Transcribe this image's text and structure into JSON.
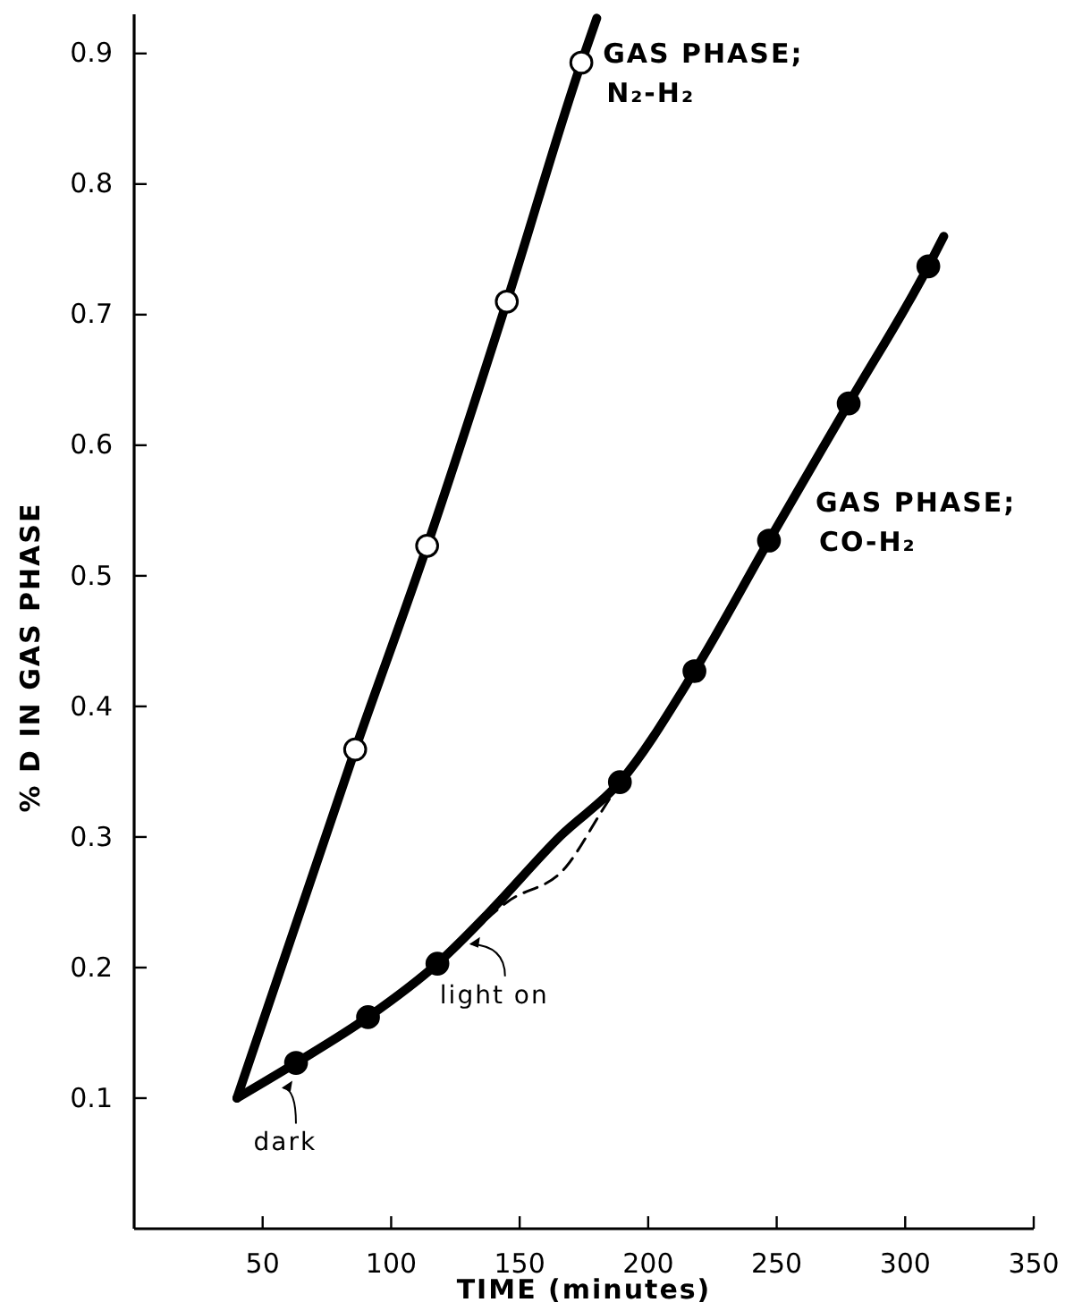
{
  "chart_data": {
    "type": "line",
    "xlabel": "TIME (minutes)",
    "ylabel": "% D IN GAS PHASE",
    "xlim": [
      0,
      350
    ],
    "ylim": [
      0,
      0.93
    ],
    "xticks": [
      50,
      100,
      150,
      200,
      250,
      300,
      350
    ],
    "yticks": [
      0.1,
      0.2,
      0.3,
      0.4,
      0.5,
      0.6,
      0.7,
      0.8,
      0.9
    ],
    "grid": false,
    "annotations": [
      {
        "text": "dark",
        "x": 56,
        "y": 0.112
      },
      {
        "text": "light on",
        "x": 129,
        "y": 0.222
      }
    ],
    "series": [
      {
        "name": "GAS PHASE; N₂-H₂",
        "color": "#000000",
        "marker": "none",
        "line_style": "solid",
        "x": [
          40,
          86,
          114,
          145,
          174,
          180
        ],
        "values": [
          0.1,
          0.367,
          0.523,
          0.71,
          0.893,
          0.927
        ]
      },
      {
        "type": "scatter",
        "color": "#ffffff",
        "marker": "circle",
        "x": [
          86,
          114,
          145,
          174
        ],
        "values": [
          0.367,
          0.523,
          0.71,
          0.893
        ]
      },
      {
        "name": "GAS PHASE; CO-H₂",
        "color": "#000000",
        "marker": "none",
        "line_style": "solid",
        "x": [
          40,
          63,
          91,
          118,
          138,
          166,
          189,
          218,
          247,
          278,
          309,
          315
        ],
        "values": [
          0.1,
          0.127,
          0.162,
          0.203,
          0.242,
          0.301,
          0.342,
          0.427,
          0.527,
          0.632,
          0.737,
          0.76
        ]
      },
      {
        "type": "scatter",
        "color": "#000000",
        "marker": "circle",
        "x": [
          63,
          91,
          118,
          189,
          218,
          247,
          278,
          309
        ],
        "values": [
          0.127,
          0.162,
          0.203,
          0.342,
          0.427,
          0.527,
          0.632,
          0.737
        ]
      },
      {
        "color": "#000000",
        "marker": "none",
        "line_style": "dashed",
        "x": [
          124,
          145,
          168,
          182,
          189
        ],
        "values": [
          0.212,
          0.25,
          0.277,
          0.32,
          0.342
        ]
      }
    ]
  }
}
